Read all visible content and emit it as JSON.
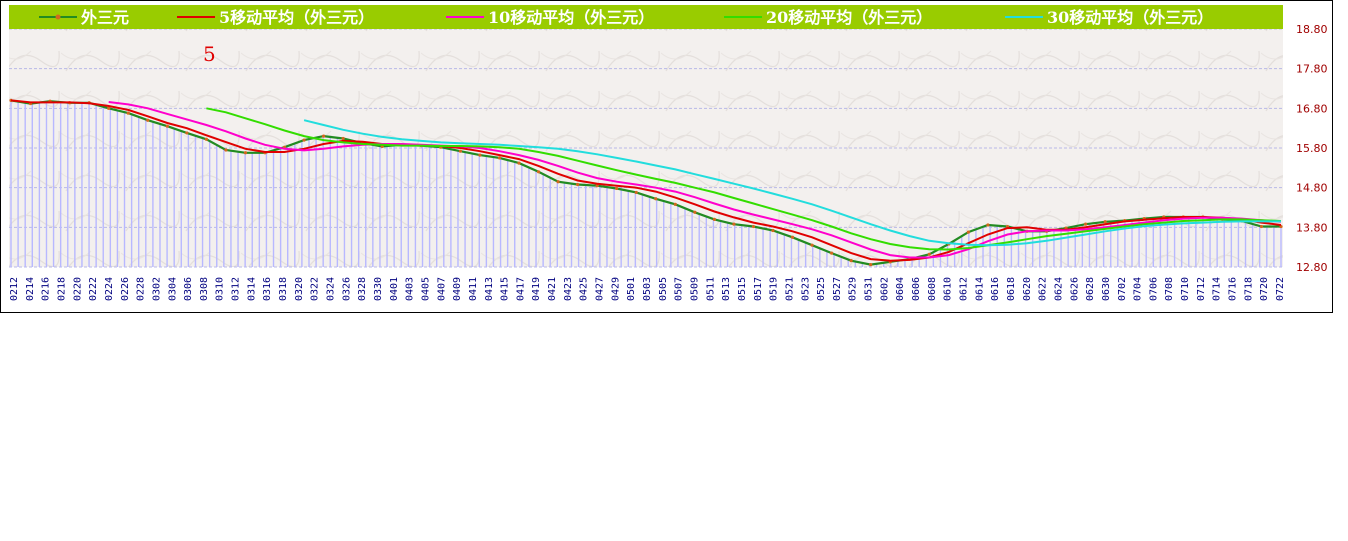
{
  "chart_data": {
    "type": "line",
    "annotation": "5",
    "legend_bg": "#99cc00",
    "plot_bg": "#f3f0ee",
    "bar_color": "#b8b8ff",
    "gridline_color": "#b8b8e8",
    "ylim": [
      12.8,
      18.8
    ],
    "y_ticks": [
      "18.80",
      "17.80",
      "16.80",
      "15.80",
      "14.80",
      "13.80",
      "12.80"
    ],
    "x_tick_labels": [
      "0212",
      "0214",
      "0216",
      "0218",
      "0220",
      "0222",
      "0224",
      "0226",
      "0228",
      "0302",
      "0304",
      "0306",
      "0308",
      "0310",
      "0312",
      "0314",
      "0316",
      "0318",
      "0320",
      "0322",
      "0324",
      "0326",
      "0328",
      "0330",
      "0401",
      "0403",
      "0405",
      "0407",
      "0409",
      "0411",
      "0413",
      "0415",
      "0417",
      "0419",
      "0421",
      "0423",
      "0425",
      "0427",
      "0429",
      "0501",
      "0503",
      "0505",
      "0507",
      "0509",
      "0511",
      "0513",
      "0515",
      "0517",
      "0519",
      "0521",
      "0523",
      "0525",
      "0527",
      "0529",
      "0531",
      "0602",
      "0604",
      "0606",
      "0608",
      "0610",
      "0612",
      "0614",
      "0616",
      "0618",
      "0620",
      "0622",
      "0624",
      "0626",
      "0628",
      "0630",
      "0702",
      "0704",
      "0706",
      "0708",
      "0710",
      "0712",
      "0714",
      "0716",
      "0718",
      "0720",
      "0722"
    ],
    "series": [
      {
        "name": "外三元",
        "color": "#228b22",
        "marker_color": "#d2691e",
        "style": "marker-line",
        "values": [
          17.0,
          16.92,
          16.98,
          16.94,
          16.94,
          16.8,
          16.68,
          16.5,
          16.35,
          16.18,
          16.02,
          15.75,
          15.68,
          15.68,
          15.82,
          16.0,
          16.1,
          16.04,
          15.92,
          15.84,
          15.88,
          15.86,
          15.82,
          15.72,
          15.62,
          15.55,
          15.42,
          15.2,
          14.95,
          14.88,
          14.85,
          14.78,
          14.68,
          14.52,
          14.38,
          14.18,
          14.0,
          13.88,
          13.82,
          13.72,
          13.55,
          13.35,
          13.15,
          12.96,
          12.86,
          12.93,
          13.0,
          13.12,
          13.38,
          13.68,
          13.86,
          13.82,
          13.7,
          13.7,
          13.78,
          13.88,
          13.94,
          13.97,
          14.02,
          14.06,
          14.06,
          14.06,
          14.0,
          13.96,
          13.82,
          13.82
        ]
      },
      {
        "name": "5移动平均（外三元）",
        "color": "#e00000",
        "style": "line",
        "values": [
          17.0,
          16.95,
          16.95,
          16.95,
          16.93,
          16.86,
          16.76,
          16.6,
          16.43,
          16.3,
          16.12,
          15.95,
          15.78,
          15.7,
          15.7,
          15.78,
          15.9,
          15.98,
          15.96,
          15.9,
          15.88,
          15.87,
          15.85,
          15.8,
          15.72,
          15.62,
          15.52,
          15.35,
          15.15,
          14.98,
          14.9,
          14.85,
          14.8,
          14.7,
          14.55,
          14.38,
          14.2,
          14.05,
          13.92,
          13.82,
          13.7,
          13.55,
          13.35,
          13.15,
          13.0,
          12.96,
          12.98,
          13.04,
          13.18,
          13.4,
          13.62,
          13.78,
          13.8,
          13.74,
          13.74,
          13.8,
          13.88,
          13.95,
          13.99,
          14.03,
          14.06,
          14.06,
          14.04,
          14.0,
          13.92,
          13.86
        ]
      },
      {
        "name": "10移动平均（外三元）",
        "color": "#ff00cc",
        "style": "line",
        "values": [
          null,
          null,
          null,
          null,
          null,
          16.96,
          16.9,
          16.8,
          16.66,
          16.52,
          16.38,
          16.22,
          16.04,
          15.88,
          15.78,
          15.74,
          15.78,
          15.84,
          15.88,
          15.9,
          15.9,
          15.88,
          15.86,
          15.84,
          15.8,
          15.72,
          15.62,
          15.5,
          15.35,
          15.18,
          15.04,
          14.95,
          14.88,
          14.8,
          14.7,
          14.56,
          14.4,
          14.25,
          14.12,
          14.0,
          13.88,
          13.75,
          13.6,
          13.42,
          13.24,
          13.1,
          13.04,
          13.04,
          13.1,
          13.25,
          13.45,
          13.62,
          13.7,
          13.72,
          13.72,
          13.75,
          13.8,
          13.86,
          13.92,
          13.98,
          14.02,
          14.04,
          14.04,
          14.02,
          13.98,
          13.94
        ]
      },
      {
        "name": "20移动平均（外三元）",
        "color": "#33dd00",
        "style": "line",
        "values": [
          null,
          null,
          null,
          null,
          null,
          null,
          null,
          null,
          null,
          null,
          16.8,
          16.7,
          16.55,
          16.4,
          16.24,
          16.1,
          16.0,
          15.94,
          15.9,
          15.88,
          15.86,
          15.86,
          15.85,
          15.85,
          15.84,
          15.82,
          15.78,
          15.7,
          15.6,
          15.48,
          15.36,
          15.24,
          15.13,
          15.02,
          14.92,
          14.8,
          14.68,
          14.54,
          14.4,
          14.26,
          14.12,
          13.98,
          13.82,
          13.65,
          13.5,
          13.38,
          13.3,
          13.25,
          13.24,
          13.28,
          13.35,
          13.42,
          13.5,
          13.58,
          13.64,
          13.7,
          13.76,
          13.82,
          13.88,
          13.92,
          13.96,
          13.98,
          14.0,
          14.0,
          13.98,
          13.96
        ]
      },
      {
        "name": "30移动平均（外三元）",
        "color": "#22dddd",
        "style": "line",
        "values": [
          null,
          null,
          null,
          null,
          null,
          null,
          null,
          null,
          null,
          null,
          null,
          null,
          null,
          null,
          null,
          16.5,
          16.38,
          16.26,
          16.16,
          16.08,
          16.02,
          15.98,
          15.94,
          15.92,
          15.9,
          15.88,
          15.85,
          15.82,
          15.78,
          15.72,
          15.64,
          15.55,
          15.46,
          15.36,
          15.26,
          15.14,
          15.02,
          14.9,
          14.78,
          14.65,
          14.52,
          14.38,
          14.22,
          14.05,
          13.88,
          13.72,
          13.58,
          13.46,
          13.4,
          13.36,
          13.35,
          13.36,
          13.4,
          13.46,
          13.54,
          13.62,
          13.7,
          13.77,
          13.83,
          13.87,
          13.9,
          13.92,
          13.94,
          13.95,
          13.95,
          13.95
        ]
      }
    ]
  }
}
